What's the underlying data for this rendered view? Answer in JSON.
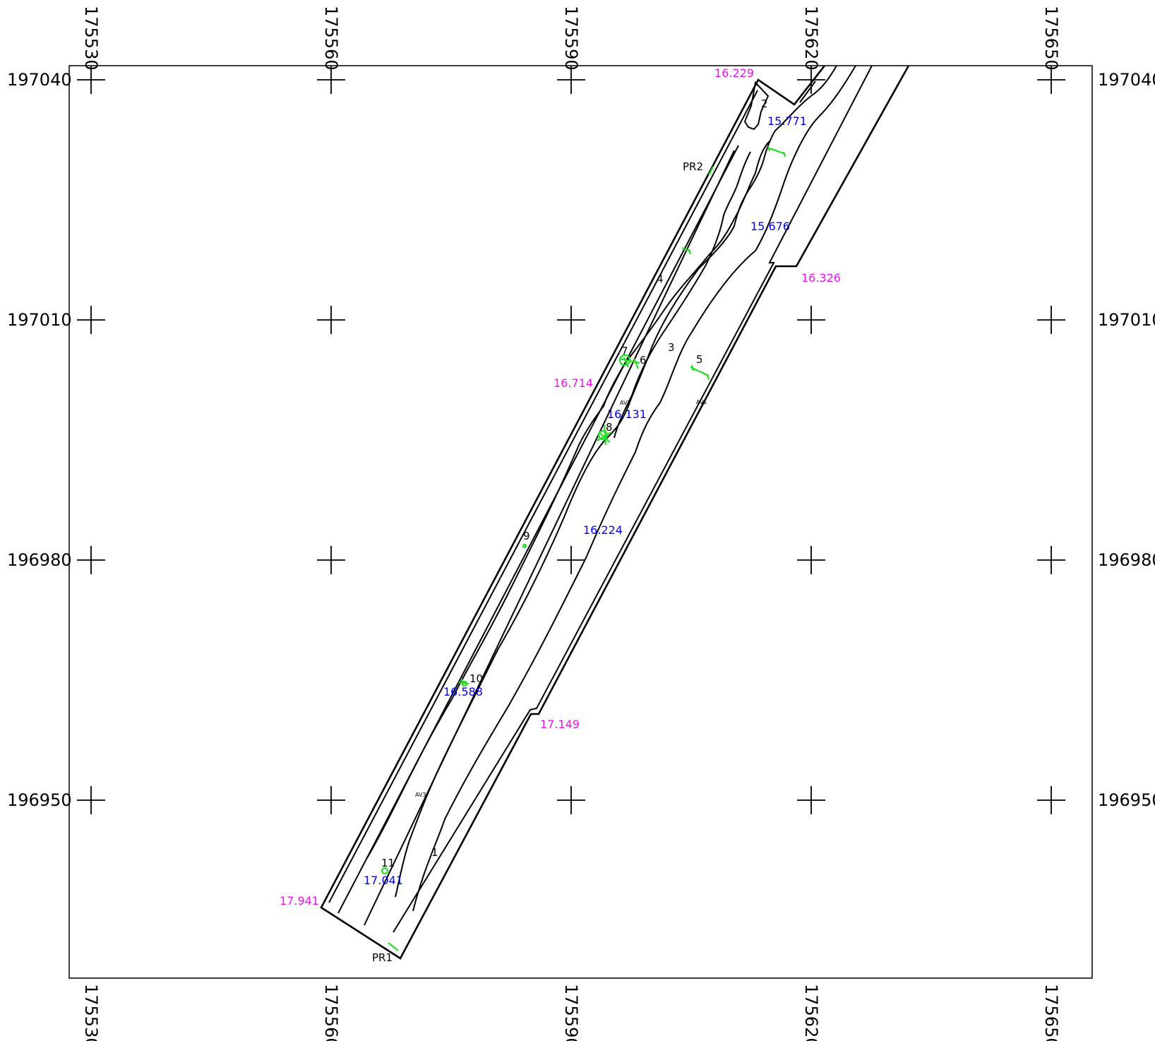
{
  "grid": {
    "eastings": [
      "175530",
      "175560",
      "175590",
      "175620",
      "175650"
    ],
    "northings": [
      "197040",
      "197010",
      "196980",
      "196950"
    ]
  },
  "labels": {
    "points": [
      "1",
      "2",
      "3",
      "4",
      "5",
      "6",
      "7",
      "8",
      "9",
      "10",
      "11"
    ],
    "profiles": [
      "PR1",
      "PR2"
    ],
    "avs": [
      "AV1",
      "AV2",
      "AV3"
    ],
    "elev_blue": [
      "15.771",
      "15.676",
      "16.131",
      "16.224",
      "16.588",
      "17.041"
    ],
    "elev_pink": [
      "16.229",
      "16.326",
      "16.714",
      "17.149",
      "17.941"
    ]
  },
  "colors": {
    "frame": "#000000",
    "features": "#22dd22",
    "elev_blue": "#0000ee",
    "elev_pink": "#ee11ee"
  }
}
